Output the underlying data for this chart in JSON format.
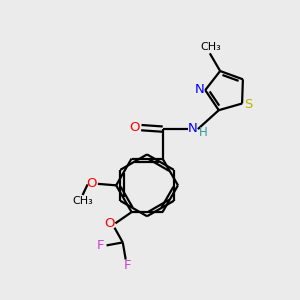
{
  "background_color": "#ebebeb",
  "bond_color": "#000000",
  "atom_colors": {
    "O": "#ff0000",
    "N": "#0000ff",
    "S": "#b8b800",
    "F": "#cc44cc",
    "H": "#339999",
    "C": "#000000"
  },
  "figsize": [
    3.0,
    3.0
  ],
  "dpi": 100
}
